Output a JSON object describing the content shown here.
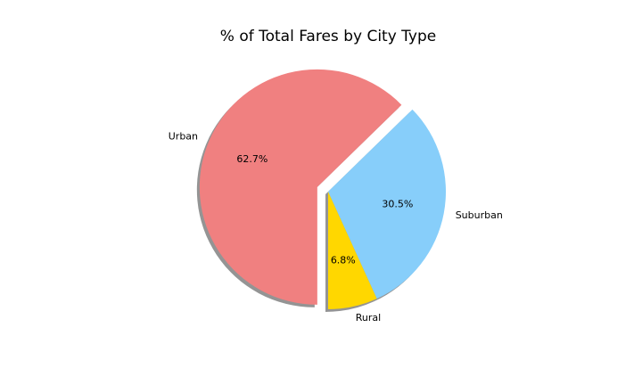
{
  "chart_data": {
    "type": "pie",
    "title": "% of Total Fares by City Type",
    "slices": [
      {
        "label": "Rural",
        "percent": 6.8,
        "pct_label": "6.8%",
        "color": "#FFD700",
        "explode": 0
      },
      {
        "label": "Suburban",
        "percent": 30.5,
        "pct_label": "30.5%",
        "color": "#87CEFA",
        "explode": 0
      },
      {
        "label": "Urban",
        "percent": 62.7,
        "pct_label": "62.7%",
        "color": "#F08080",
        "explode": 0.1
      }
    ],
    "shadow": true,
    "legend": "none"
  }
}
